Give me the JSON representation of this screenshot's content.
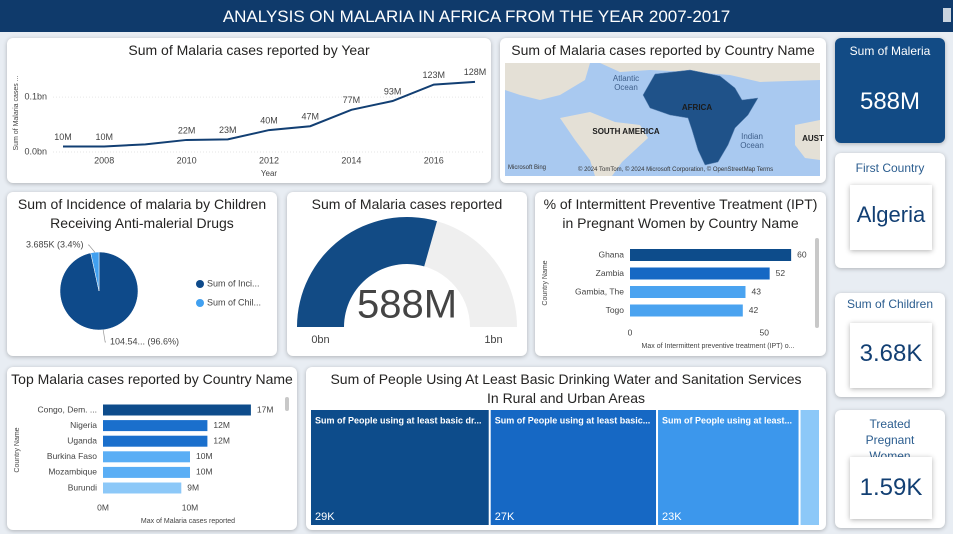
{
  "header": {
    "title": "ANALYSIS ON MALARIA IN AFRICA FROM THE YEAR 2007-2017"
  },
  "chart_data": [
    {
      "type": "line",
      "title": "Sum of Malaria cases reported by Year",
      "x": [
        2007,
        2008,
        2009,
        2010,
        2011,
        2012,
        2013,
        2014,
        2015,
        2016,
        2017
      ],
      "values": [
        0.01,
        0.01,
        0.014,
        0.022,
        0.023,
        0.04,
        0.047,
        0.077,
        0.093,
        0.123,
        0.128
      ],
      "value_labels": [
        "10M",
        "10M",
        null,
        "22M",
        "23M",
        "40M",
        "47M",
        "77M",
        "93M",
        "123M",
        "128M"
      ],
      "color": "#123f73",
      "xlabel": "Year",
      "ylabel": "Sum of Malaria cases ...",
      "xlim": [
        2007,
        2017
      ],
      "xticks": [
        2008,
        2010,
        2012,
        2014,
        2016
      ],
      "ylim": [
        0,
        0.135
      ],
      "yticks": [
        {
          "value": 0,
          "label": "0.0bn"
        },
        {
          "value": 0.1,
          "label": "0.1bn"
        }
      ]
    },
    {
      "type": "map",
      "title": "Sum of Malaria cases reported by Country Name",
      "labels": [
        "Atlantic Ocean",
        "AFRICA",
        "SOUTH AMERICA",
        "Indian Ocean",
        "AUST"
      ],
      "logo": "Microsoft Bing",
      "attribution": "© 2024 TomTom, © 2024 Microsoft Corporation, © OpenStreetMap  Terms"
    },
    {
      "type": "pie",
      "title": "Sum of Incidence of malaria by Children Receiving Anti-malerial Drugs",
      "categories": [
        "Sum of Inci...",
        "Sum of Chil..."
      ],
      "values": [
        96.6,
        3.4
      ],
      "value_labels": [
        "104.54... (96.6%)",
        "3.685K (3.4%)"
      ],
      "colors": [
        "#0e4a8a",
        "#41a0f0"
      ]
    },
    {
      "type": "gauge",
      "title": "Sum of Malaria cases reported",
      "value": 0.588,
      "value_label": "588M",
      "ylim": [
        0,
        1
      ],
      "yticks": [
        {
          "value": 0,
          "label": "0bn"
        },
        {
          "value": 1,
          "label": "1bn"
        }
      ],
      "color": "#124b85",
      "track_color": "#efefef"
    },
    {
      "type": "hbar",
      "title": "% of Intermittent Preventive Treatment (IPT) in Pregnant Women by Country Name",
      "categories": [
        "Ghana",
        "Zambia",
        "Gambia, The",
        "Togo"
      ],
      "values": [
        60,
        52,
        43,
        42
      ],
      "colors": [
        "#0d4c8b",
        "#1668c4",
        "#4aa3f0",
        "#4aa3f0"
      ],
      "xlabel": "Max of Intermittent preventive treatment (IPT) o...",
      "ylabel": "Country Name",
      "xlim": [
        0,
        70
      ],
      "xticks": [
        0,
        50
      ]
    },
    {
      "type": "hbar",
      "title": "Top Malaria cases reported by Country Name",
      "categories": [
        "Congo, Dem. ...",
        "Nigeria",
        "Uganda",
        "Burkina Faso",
        "Mozambique",
        "Burundi"
      ],
      "values": [
        17,
        12,
        12,
        10,
        10,
        9
      ],
      "value_labels": [
        "17M",
        "12M",
        "12M",
        "10M",
        "10M",
        "9M"
      ],
      "colors": [
        "#0d4c8b",
        "#1a6fcc",
        "#1a6fcc",
        "#5aaef5",
        "#5aaef5",
        "#8cc8f8"
      ],
      "xlabel": "Max of Malaria cases reported",
      "ylabel": "Country Name",
      "xlim": [
        0,
        20
      ],
      "xticks": [
        {
          "value": 0,
          "label": "0M"
        },
        {
          "value": 10,
          "label": "10M"
        }
      ]
    },
    {
      "type": "treemap",
      "title": "Sum of People Using At Least Basic Drinking Water and Sanitation Services In Rural and Urban Areas",
      "categories": [
        "Sum of People using at least basic dr...",
        "Sum of People using at least basic...",
        "Sum of People using at least...",
        null
      ],
      "values": [
        29,
        27,
        23,
        3.3
      ],
      "value_labels": [
        "29K",
        "27K",
        "23K",
        null
      ],
      "colors": [
        "#0d4c8b",
        "#1668c4",
        "#3c97ec",
        "#8cc8f8"
      ]
    }
  ],
  "cards": [
    {
      "title": "Sum of Maleria",
      "value": "588M"
    },
    {
      "title": "First Country",
      "value": "Algeria"
    },
    {
      "title": "Sum of Children",
      "value": "3.68K"
    },
    {
      "title": "Treated Pregnant Women",
      "value": "1.59K"
    }
  ]
}
